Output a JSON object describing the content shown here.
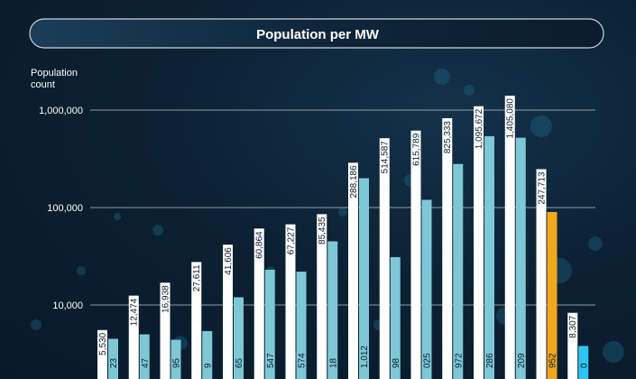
{
  "chart_data": {
    "type": "bar",
    "title": "Population per MW",
    "ylabel": "Population count",
    "yscale": "log",
    "ylim": [
      1000,
      1800000
    ],
    "yticks": [
      1000000,
      100000,
      10000
    ],
    "ytick_labels": [
      "1,000,000",
      "100,000",
      "10,000"
    ],
    "grid": true,
    "series": [
      {
        "values": [
          5530,
          12474,
          16938,
          27611,
          41606,
          60864,
          67227,
          85435,
          288186,
          514587,
          615789,
          825333,
          1095672,
          1405080,
          247713,
          8307
        ],
        "labels": [
          "5,530",
          "12,474",
          "16,938",
          "27,611",
          "41,606",
          "60,864",
          "67,227",
          "85,435",
          "288,186",
          "514,587",
          "615,789",
          "825,333",
          "1,095,672",
          "1,405,080",
          "247,713",
          "8,307"
        ],
        "colors": [
          "#ffffff",
          "#ffffff",
          "#ffffff",
          "#ffffff",
          "#ffffff",
          "#ffffff",
          "#ffffff",
          "#ffffff",
          "#ffffff",
          "#ffffff",
          "#ffffff",
          "#ffffff",
          "#ffffff",
          "#ffffff",
          "#ffffff",
          "#ffffff"
        ]
      },
      {
        "values": [
          4500,
          5000,
          4400,
          5400,
          12000,
          23000,
          22000,
          45000,
          200000,
          31000,
          120000,
          280000,
          540000,
          520000,
          90000,
          3800
        ],
        "labels": [
          "23",
          "47",
          "95",
          "9",
          "65",
          "547",
          "574",
          "18",
          "1,012",
          "98",
          "025",
          "972",
          "286",
          "209",
          "952",
          "0"
        ],
        "colors": [
          "#7ec8d6",
          "#7ec8d6",
          "#7ec8d6",
          "#7ec8d6",
          "#7ec8d6",
          "#7ec8d6",
          "#7ec8d6",
          "#7ec8d6",
          "#7ec8d6",
          "#7ec8d6",
          "#7ec8d6",
          "#7ec8d6",
          "#7ec8d6",
          "#7ec8d6",
          "#f2a81d",
          "#2ec5f0"
        ]
      }
    ],
    "colors": {
      "background": "#0c2133",
      "title_pill": "#11283d",
      "pill_border": "#c9d3dc",
      "gridline": "#ffffff",
      "primary_bar": "#ffffff",
      "secondary_bar": "#7ec8d6",
      "highlight_bar": "#f2a81d",
      "accent_bar": "#2ec5f0"
    }
  }
}
